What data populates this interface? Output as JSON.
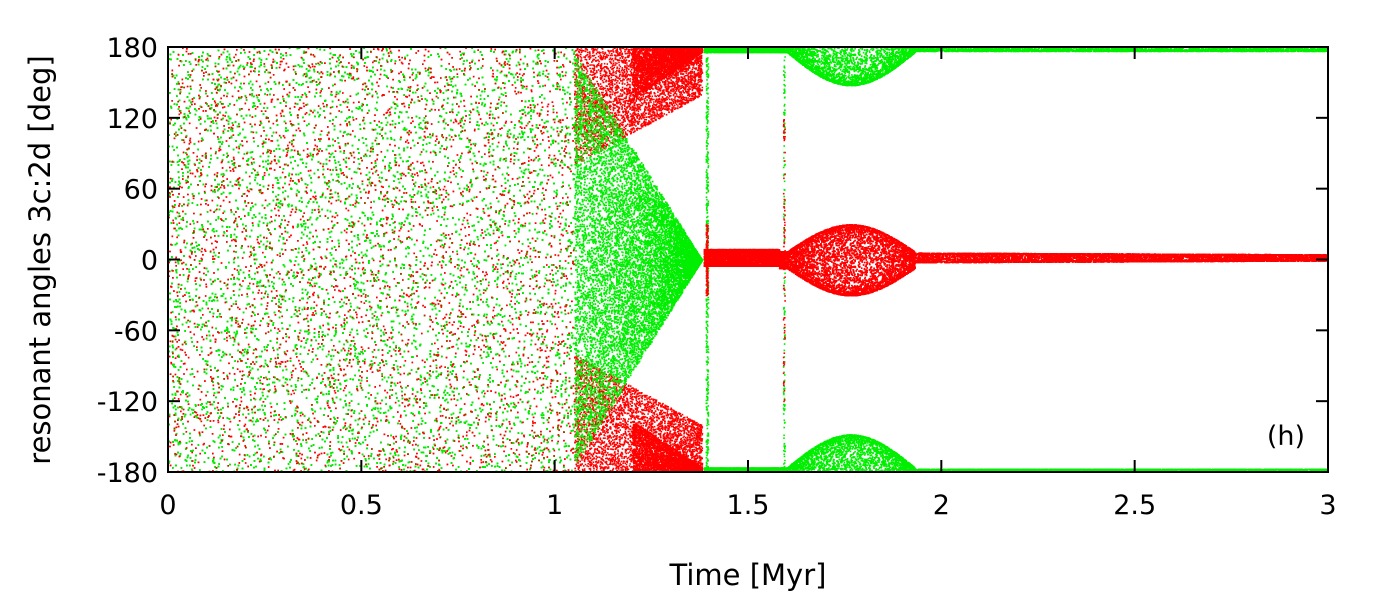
{
  "chart_data": {
    "type": "scatter",
    "title": "",
    "xlabel": "Time [Myr]",
    "ylabel": "resonant angles 3c:2d [deg]",
    "xlim": [
      0,
      3
    ],
    "ylim": [
      -180,
      180
    ],
    "xticks": [
      0,
      0.5,
      1,
      1.5,
      2,
      2.5,
      3
    ],
    "xtick_labels": [
      "0",
      "0.5",
      "1",
      "1.5",
      "2",
      "2.5",
      "3"
    ],
    "yticks": [
      -180,
      -120,
      -60,
      0,
      60,
      120,
      180
    ],
    "ytick_labels": [
      "-180",
      "-120",
      "-60",
      "0",
      "60",
      "120",
      "180"
    ],
    "annotation": "(h)",
    "grid": false,
    "legend": "none",
    "series": [
      {
        "color": "#ff0000",
        "phases": [
          {
            "t_start": 0.0,
            "t_end": 1.05,
            "behavior": "circulation",
            "center": 0,
            "amplitude": 180
          },
          {
            "t_start": 1.05,
            "t_end": 1.38,
            "behavior": "circulation-to-libration",
            "center": 0,
            "amplitude_start": 180,
            "amplitude_end": 180
          },
          {
            "t_start": 1.38,
            "t_end": 1.58,
            "behavior": "libration",
            "center": 2,
            "amplitude": 7
          },
          {
            "t_start": 1.58,
            "t_end": 1.92,
            "behavior": "libration-bump",
            "center": 0,
            "amplitude_peak": 30,
            "peak_time": 1.72
          },
          {
            "t_start": 1.92,
            "t_end": 3.0,
            "behavior": "libration",
            "center": 2,
            "amplitude": 4
          }
        ]
      },
      {
        "color": "#00ee00",
        "phases": [
          {
            "t_start": 0.0,
            "t_end": 1.05,
            "behavior": "circulation",
            "center": 0,
            "amplitude": 180
          },
          {
            "t_start": 1.05,
            "t_end": 1.38,
            "behavior": "converging",
            "center": 0,
            "amplitude_start": 130,
            "amplitude_end": 0
          },
          {
            "t_start": 1.38,
            "t_end": 1.58,
            "behavior": "libration",
            "center": 180,
            "amplitude": 5
          },
          {
            "t_start": 1.58,
            "t_end": 1.92,
            "behavior": "libration-bump",
            "center": 180,
            "amplitude_peak": 32,
            "peak_time": 1.71
          },
          {
            "t_start": 1.92,
            "t_end": 3.0,
            "behavior": "libration",
            "center": 180,
            "amplitude": 3
          }
        ]
      }
    ]
  }
}
